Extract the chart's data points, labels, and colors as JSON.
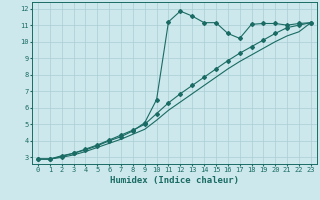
{
  "xlabel": "Humidex (Indice chaleur)",
  "xlim": [
    -0.5,
    23.5
  ],
  "ylim": [
    2.6,
    12.4
  ],
  "xticks": [
    0,
    1,
    2,
    3,
    4,
    5,
    6,
    7,
    8,
    9,
    10,
    11,
    12,
    13,
    14,
    15,
    16,
    17,
    18,
    19,
    20,
    21,
    22,
    23
  ],
  "yticks": [
    3,
    4,
    5,
    6,
    7,
    8,
    9,
    10,
    11,
    12
  ],
  "bg_color": "#cce8ec",
  "grid_color": "#aacdd4",
  "line_color": "#1a6b64",
  "line1_x": [
    0,
    1,
    2,
    3,
    4,
    5,
    6,
    7,
    8,
    9,
    10,
    11,
    12,
    13,
    14,
    15,
    16,
    17,
    18,
    19,
    20,
    21,
    22,
    23
  ],
  "line1_y": [
    2.9,
    2.9,
    3.1,
    3.25,
    3.45,
    3.7,
    4.0,
    4.25,
    4.6,
    5.1,
    6.5,
    11.2,
    11.85,
    11.55,
    11.15,
    11.15,
    10.5,
    10.2,
    11.05,
    11.1,
    11.1,
    11.0,
    11.1,
    11.15
  ],
  "line2_x": [
    0,
    1,
    2,
    3,
    4,
    5,
    6,
    7,
    8,
    9,
    10,
    11,
    12,
    13,
    14,
    15,
    16,
    17,
    18,
    19,
    20,
    21,
    22,
    23
  ],
  "line2_y": [
    2.9,
    2.9,
    3.05,
    3.25,
    3.5,
    3.75,
    4.05,
    4.35,
    4.65,
    5.0,
    5.65,
    6.3,
    6.85,
    7.35,
    7.85,
    8.35,
    8.85,
    9.3,
    9.7,
    10.1,
    10.5,
    10.85,
    11.0,
    11.15
  ],
  "line3_x": [
    0,
    1,
    2,
    3,
    4,
    5,
    6,
    7,
    8,
    9,
    10,
    11,
    12,
    13,
    14,
    15,
    16,
    17,
    18,
    19,
    20,
    21,
    22,
    23
  ],
  "line3_y": [
    2.9,
    2.9,
    3.0,
    3.15,
    3.35,
    3.6,
    3.85,
    4.1,
    4.4,
    4.7,
    5.25,
    5.85,
    6.35,
    6.85,
    7.35,
    7.85,
    8.35,
    8.8,
    9.2,
    9.6,
    10.0,
    10.35,
    10.6,
    11.15
  ]
}
